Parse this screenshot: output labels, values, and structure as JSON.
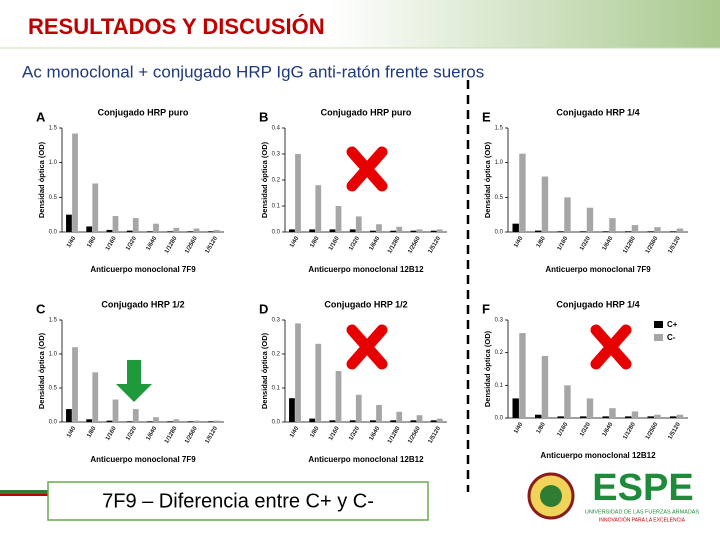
{
  "slide": {
    "title": "RESULTADOS Y DISCUSIÓN",
    "subtitle": "Ac monoclonal + conjugado HRP IgG anti-ratón frente sueros",
    "callout": "7F9 – Diferencia entre C+ y C-",
    "logo": {
      "name": "ESPE",
      "university": "UNIVERSIDAD DE LAS FUERZAS ARMADAS",
      "motto": "INNOVACIÓN PARA LA EXCELENCIA"
    }
  },
  "chart_data": [
    {
      "type": "bar",
      "panel": "A",
      "title": "Conjugado HRP puro",
      "y_label": "Densidad óptica (OD)",
      "x_label": "Anticuerpo monoclonal 7F9",
      "categories": [
        "1/40",
        "1/80",
        "1/160",
        "1/320",
        "1/640",
        "1/1280",
        "1/2560",
        "1/5120"
      ],
      "series": [
        {
          "color": "#000000",
          "values": [
            0.25,
            0.08,
            0.03,
            0.02,
            0.01,
            0.01,
            0.01,
            0.01
          ]
        },
        {
          "color": "#a6a6a6",
          "values": [
            1.42,
            0.7,
            0.23,
            0.2,
            0.12,
            0.06,
            0.05,
            0.03
          ]
        }
      ],
      "ylim": [
        0,
        1.5
      ],
      "yticks": [
        {
          "value": 0,
          "label": "0.0"
        },
        0.5,
        {
          "value": 1,
          "label": "1.0"
        },
        1.5
      ]
    },
    {
      "type": "bar",
      "panel": "B",
      "title": "Conjugado HRP puro",
      "y_label": "Densidad óptica (OD)",
      "x_label": "Anticuerpo monoclonal 12B12",
      "categories": [
        "1/40",
        "1/80",
        "1/160",
        "1/320",
        "1/640",
        "1/1280",
        "1/2560",
        "1/5120"
      ],
      "series": [
        {
          "color": "#000000",
          "values": [
            0.01,
            0.01,
            0.01,
            0.01,
            0.005,
            0.005,
            0.005,
            0.005
          ]
        },
        {
          "color": "#a6a6a6",
          "values": [
            0.3,
            0.18,
            0.1,
            0.06,
            0.03,
            0.02,
            0.01,
            0.01
          ]
        }
      ],
      "ylim": [
        0,
        0.4
      ],
      "yticks": [
        {
          "value": 0,
          "label": "0.0"
        },
        0.1,
        0.2,
        0.3,
        0.4
      ]
    },
    {
      "type": "bar",
      "panel": "E",
      "title": "Conjugado HRP 1/4",
      "y_label": "Densidad óptica (OD)",
      "x_label": "Anticuerpo monoclonal 7F9",
      "categories": [
        "1/40",
        "1/80",
        "1/160",
        "1/320",
        "1/640",
        "1/1280",
        "1/2560",
        "1/5120"
      ],
      "series": [
        {
          "color": "#000000",
          "values": [
            0.12,
            0.02,
            0.01,
            0.01,
            0.01,
            0.01,
            0.01,
            0.01
          ]
        },
        {
          "color": "#a6a6a6",
          "values": [
            1.13,
            0.8,
            0.5,
            0.35,
            0.2,
            0.1,
            0.07,
            0.05
          ]
        }
      ],
      "ylim": [
        0,
        1.5
      ],
      "yticks": [
        {
          "value": 0,
          "label": "0.0"
        },
        0.5,
        {
          "value": 1,
          "label": "1.0"
        },
        1.5
      ]
    },
    {
      "type": "bar",
      "panel": "C",
      "title": "Conjugado HRP 1/2",
      "y_label": "Densidad óptica (OD)",
      "x_label": "Anticuerpo monoclonal 7F9",
      "categories": [
        "1/40",
        "1/80",
        "1/160",
        "1/320",
        "1/640",
        "1/1280",
        "1/2560",
        "1/5120"
      ],
      "series": [
        {
          "color": "#000000",
          "values": [
            0.19,
            0.04,
            0.02,
            0.01,
            0.01,
            0.01,
            0.01,
            0.01
          ]
        },
        {
          "color": "#a6a6a6",
          "values": [
            1.1,
            0.73,
            0.33,
            0.19,
            0.07,
            0.04,
            0.02,
            0.02
          ]
        }
      ],
      "ylim": [
        0,
        1.5
      ],
      "yticks": [
        {
          "value": 0,
          "label": "0.0"
        },
        0.5,
        {
          "value": 1,
          "label": "1.0"
        },
        1.5
      ]
    },
    {
      "type": "bar",
      "panel": "D",
      "title": "Conjugado HRP 1/2",
      "y_label": "Densidad óptica (OD)",
      "x_label": "Anticuerpo monoclonal 12B12",
      "categories": [
        "1/40",
        "1/80",
        "1/160",
        "1/320",
        "1/640",
        "1/1280",
        "1/2560",
        "1/5120"
      ],
      "series": [
        {
          "color": "#000000",
          "values": [
            0.07,
            0.01,
            0.005,
            0.005,
            0.005,
            0.005,
            0.005,
            0.005
          ]
        },
        {
          "color": "#a6a6a6",
          "values": [
            0.29,
            0.23,
            0.15,
            0.08,
            0.05,
            0.03,
            0.02,
            0.01
          ]
        }
      ],
      "ylim": [
        0,
        0.3
      ],
      "yticks": [
        {
          "value": 0,
          "label": "0.0"
        },
        0.1,
        0.2,
        0.3
      ]
    },
    {
      "type": "bar",
      "panel": "F",
      "title": "Conjugado HRP 1/4",
      "y_label": "Densidad óptica (OD)",
      "x_label": "Anticuerpo monoclonal 12B12",
      "categories": [
        "1/40",
        "1/80",
        "1/160",
        "1/320",
        "1/640",
        "1/1280",
        "1/2560",
        "1/5120"
      ],
      "series": [
        {
          "name": "C+",
          "color": "#000000",
          "values": [
            0.06,
            0.01,
            0.005,
            0.005,
            0.005,
            0.005,
            0.005,
            0.005
          ]
        },
        {
          "name": "C-",
          "color": "#a6a6a6",
          "values": [
            0.26,
            0.19,
            0.1,
            0.06,
            0.03,
            0.02,
            0.01,
            0.01
          ]
        }
      ],
      "ylim": [
        0,
        0.3
      ],
      "yticks": [
        {
          "value": 0,
          "label": "0.0"
        },
        0.1,
        0.2,
        0.3
      ],
      "legend": "upper right"
    }
  ]
}
